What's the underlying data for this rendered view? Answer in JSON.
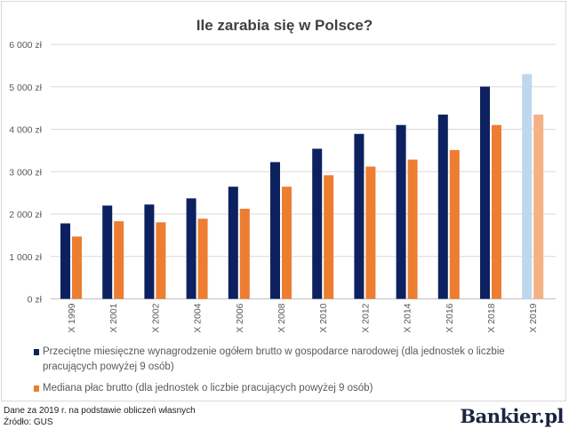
{
  "chart_data": {
    "type": "bar",
    "title": "Ile zarabia się w Polsce?",
    "categories": [
      "X 1999",
      "X 2001",
      "X 2002",
      "X 2004",
      "X 2006",
      "X 2008",
      "X 2010",
      "X 2012",
      "X 2014",
      "X 2016",
      "X 2018",
      "X 2019"
    ],
    "series": [
      {
        "name": "Przeciętne miesięczne wynagrodzenie ogółem brutto w gospodarce narodowej (dla jednostek o liczbie pracujących powyżej 9 osób)",
        "color": "#0d2160",
        "highlight_color": "#bdd7ee",
        "values": [
          1780,
          2200,
          2225,
          2370,
          2645,
          3225,
          3540,
          3890,
          4100,
          4345,
          5005,
          5300
        ]
      },
      {
        "name": "Mediana płac brutto (dla jednostek o liczbie pracujących powyżej 9 osób)",
        "color": "#ed7d31",
        "highlight_color": "#f4b183",
        "values": [
          1470,
          1830,
          1805,
          1890,
          2125,
          2645,
          2915,
          3120,
          3285,
          3510,
          4100,
          4345
        ]
      }
    ],
    "highlighted_category": "X 2019",
    "yticks": [
      "0 zł",
      "1 000 zł",
      "2 000 zł",
      "3 000 zł",
      "4 000 zł",
      "5 000 zł",
      "6 000 zł"
    ],
    "ylim": [
      0,
      6000
    ],
    "grid": true,
    "legend": "bottom"
  },
  "footer": {
    "note": "Dane za 2019 r. na podstawie obliczeń własnych",
    "source": "Źródło: GUS",
    "logo": "Bankier.pl"
  }
}
